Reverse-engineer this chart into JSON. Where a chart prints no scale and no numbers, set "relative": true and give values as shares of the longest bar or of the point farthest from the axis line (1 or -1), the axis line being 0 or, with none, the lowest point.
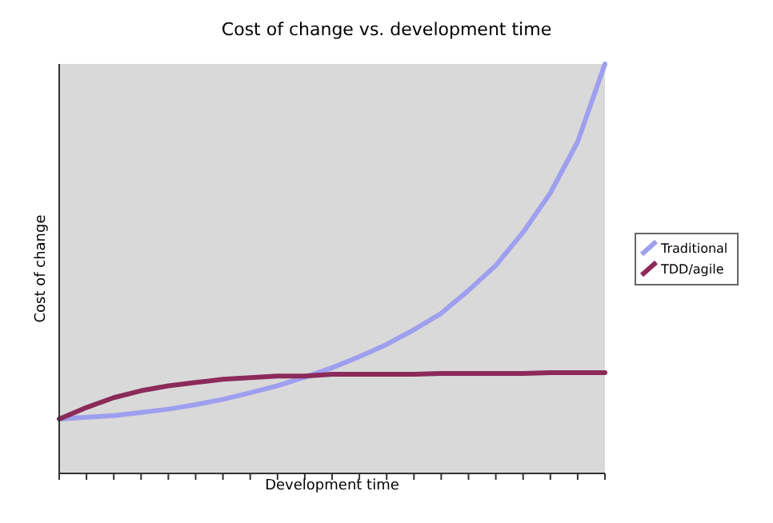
{
  "chart_data": {
    "type": "line",
    "title": "Cost of change vs. development time",
    "xlabel": "Development time",
    "ylabel": "Cost of change",
    "relative": true,
    "legend": "right",
    "grid": false,
    "marker": "none",
    "line_style": "solid",
    "categories": [
      null,
      null,
      null,
      null,
      null,
      null,
      null,
      null,
      null,
      null,
      null,
      null,
      null,
      null,
      null,
      null,
      null,
      null,
      null,
      null,
      null
    ],
    "series": [
      {
        "name": "Traditional",
        "color": "#9f9ff0",
        "values": [
          0.133,
          0.137,
          0.141,
          0.149,
          0.157,
          0.168,
          0.181,
          0.197,
          0.214,
          0.235,
          0.258,
          0.285,
          0.315,
          0.351,
          0.391,
          0.447,
          0.508,
          0.589,
          0.685,
          0.81,
          1
        ]
      },
      {
        "name": "TDD/agile",
        "color": "#8c2a5a",
        "values": [
          0.133,
          0.161,
          0.185,
          0.202,
          0.214,
          0.222,
          0.23,
          0.234,
          0.238,
          0.238,
          0.242,
          0.242,
          0.242,
          0.242,
          0.244,
          0.244,
          0.244,
          0.244,
          0.246,
          0.246,
          0.246
        ]
      }
    ]
  }
}
